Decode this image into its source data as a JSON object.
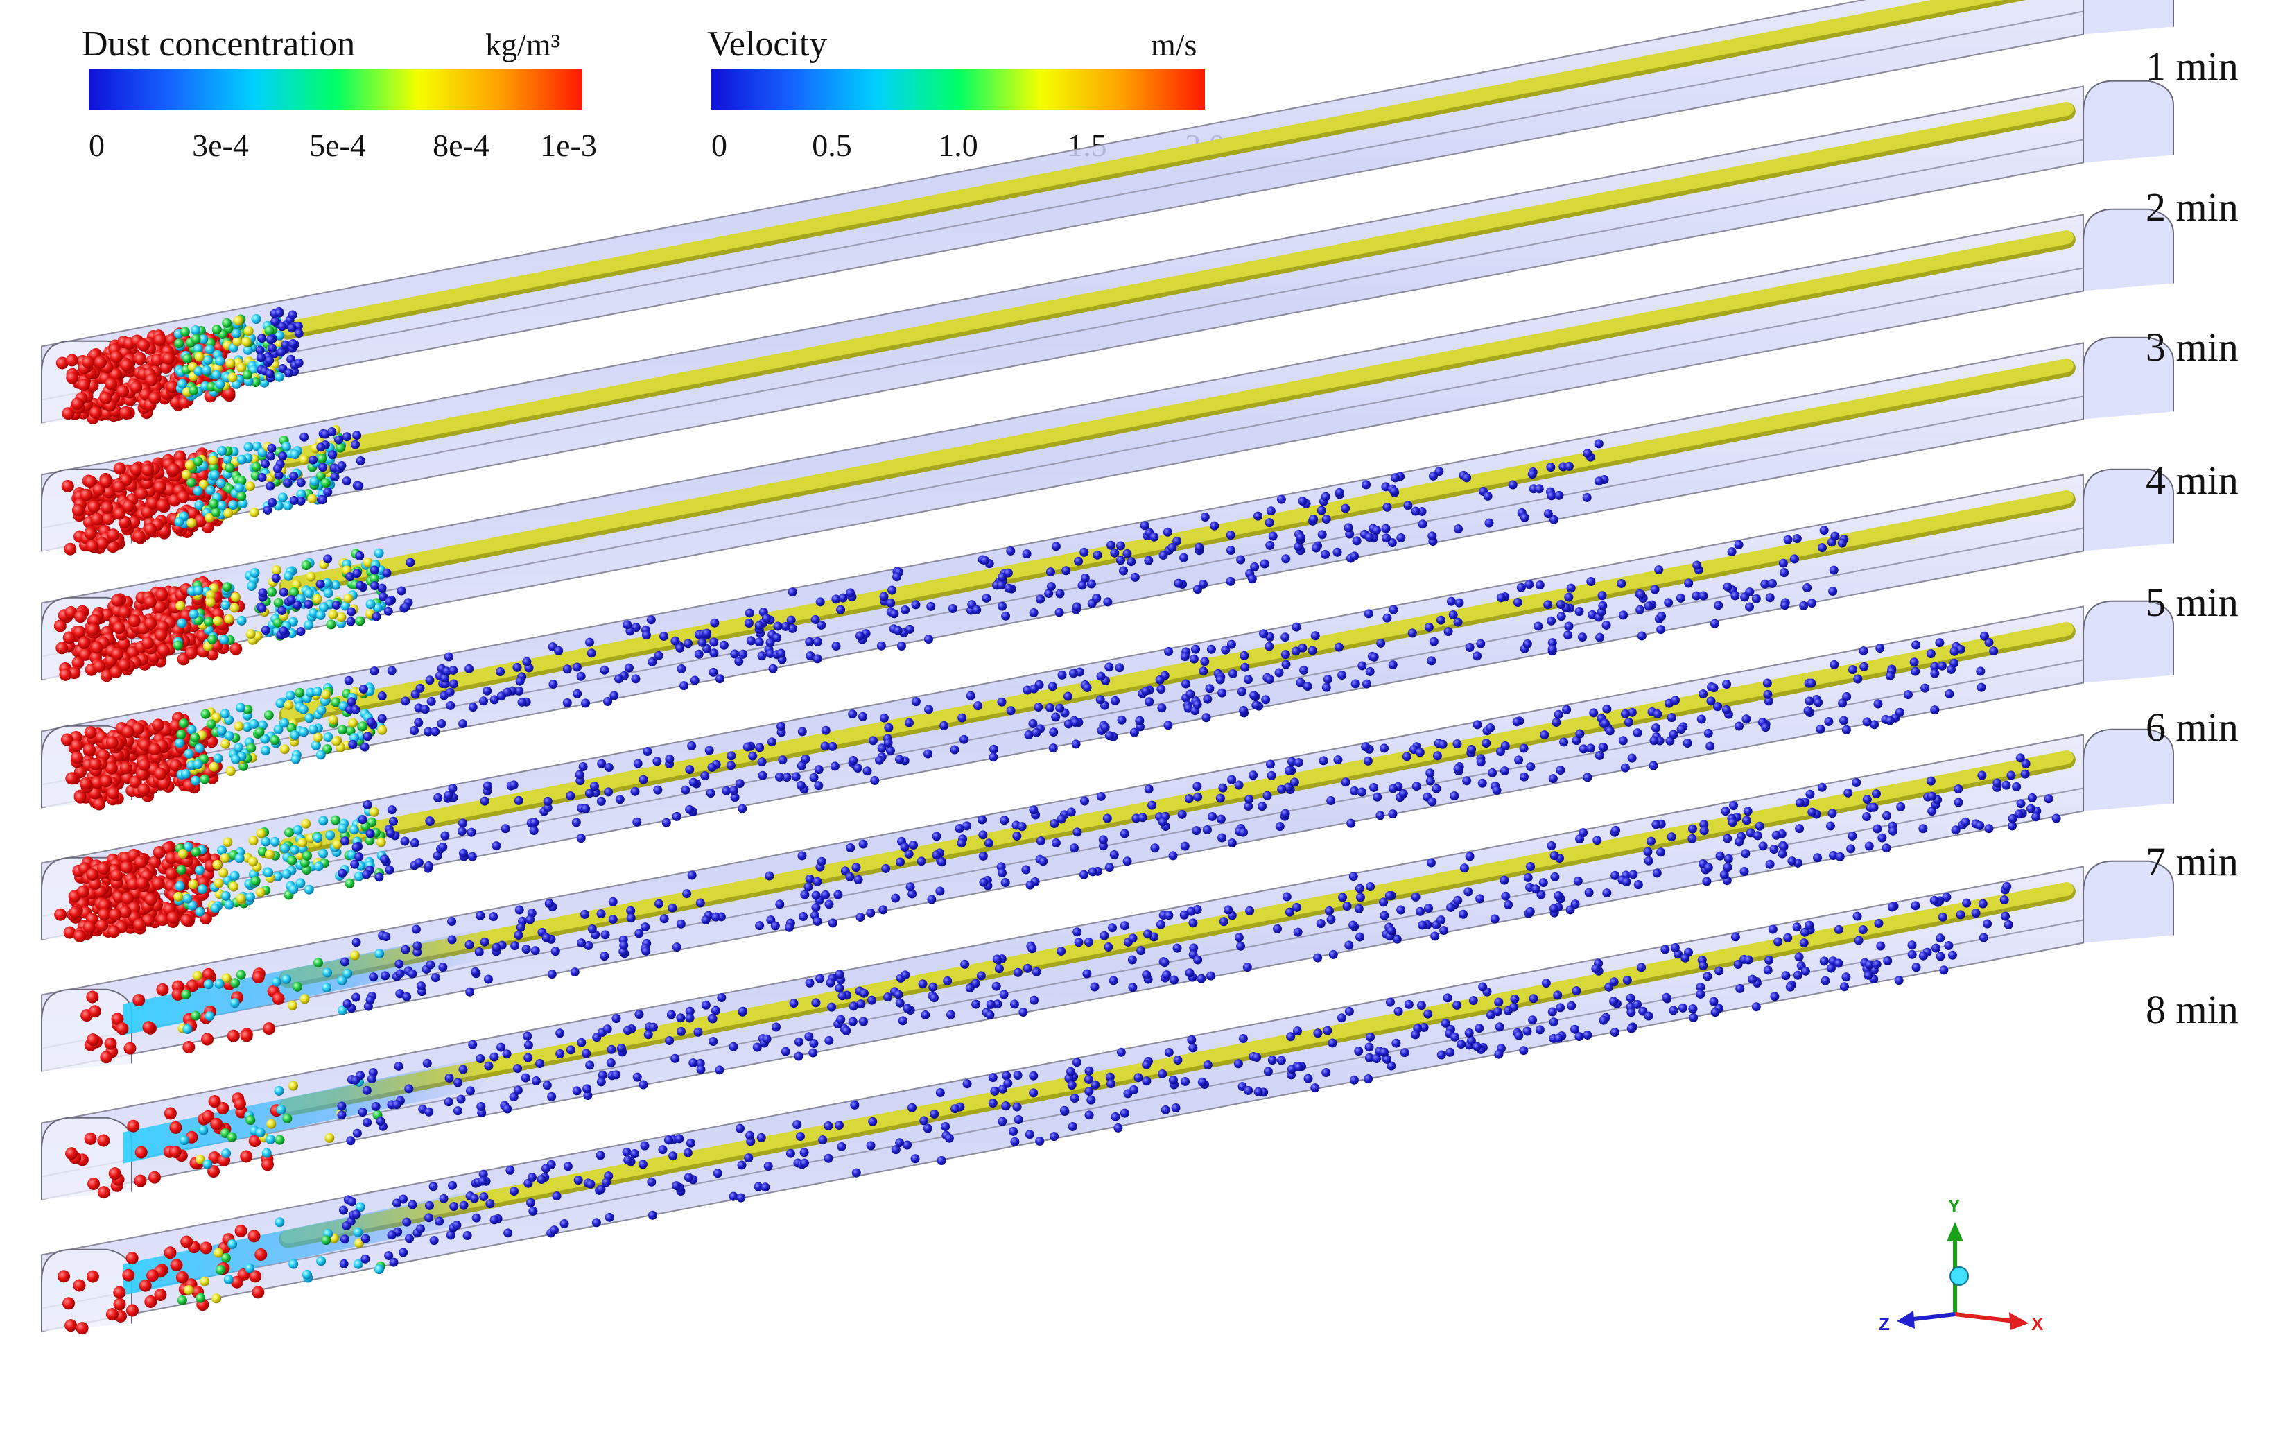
{
  "legend": {
    "dust": {
      "title": "Dust concentration",
      "unit": "kg/m³",
      "ticks": [
        "0",
        "3e-4",
        "5e-4",
        "8e-4",
        "1e-3"
      ],
      "colors": [
        "#1010d8",
        "#1565ff",
        "#00d0ff",
        "#00ff66",
        "#f5ff00",
        "#ffa000",
        "#ff1a00"
      ]
    },
    "velocity": {
      "title": "Velocity",
      "unit": "m/s",
      "ticks": [
        "0",
        "0.5",
        "1.0",
        "1.5",
        "2.0"
      ],
      "colors": [
        "#1010d8",
        "#1565ff",
        "#00d0ff",
        "#00ff66",
        "#f5ff00",
        "#ffa000",
        "#ff1a00"
      ]
    }
  },
  "time_labels": [
    "1 min",
    "2 min",
    "3 min",
    "4 min",
    "5 min",
    "6 min",
    "7 min",
    "8 min"
  ],
  "axes": {
    "y": "Y",
    "z": "Z",
    "x": "X"
  },
  "colors": {
    "tunnel": "#c9cef5",
    "tunnel_edge": "#8a8a9a",
    "pipe": "#d8d838",
    "pipe_dark": "#a6a61c",
    "particle_high": "#e81414",
    "particle_low": "#2222d0",
    "axis_y": "#19a019",
    "axis_x": "#e02020",
    "axis_z": "#2020d0",
    "origin": "#40e0ff"
  }
}
